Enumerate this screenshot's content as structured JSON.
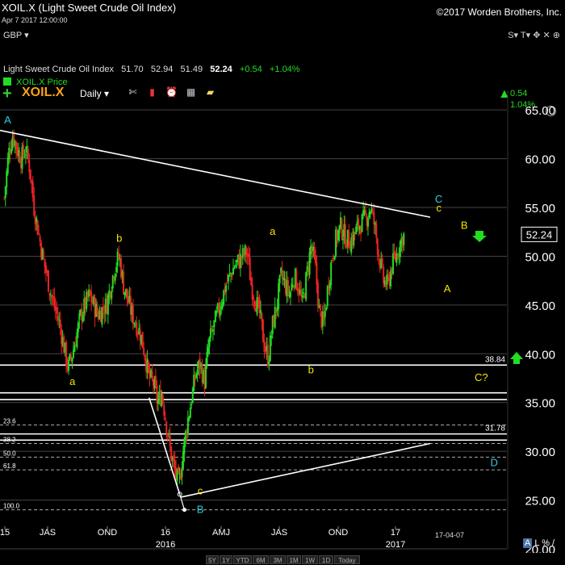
{
  "header": {
    "title": "XOIL.X (Light Sweet Crude Oil Index)",
    "copyright": "©2017 Worden Brothers, Inc.",
    "date": "Apr 7 2017 12:00:00",
    "currency": "GBP ▾",
    "window_buttons": "S▾ T▾ ✥ ✕ ⊕"
  },
  "toolbar": {
    "symbol": "XOIL.X",
    "interval": "Daily",
    "change_value": "0.54",
    "change_pct": "1.04%",
    "tools": [
      {
        "icon": "tools-icon",
        "glyph": "✄",
        "color": "#ddd"
      },
      {
        "icon": "indicator-icon",
        "glyph": "▮",
        "color": "#e33"
      },
      {
        "icon": "alarm-clock-icon",
        "glyph": "⏰",
        "color": "#e33"
      },
      {
        "icon": "calculator-icon",
        "glyph": "▦",
        "color": "#ccc"
      },
      {
        "icon": "note-icon",
        "glyph": "▰",
        "color": "#f5d76e"
      }
    ]
  },
  "quote": {
    "name": "Light Sweet Crude Oil Index",
    "open": "51.70",
    "high": "52.94",
    "low": "51.49",
    "last": "52.24",
    "change": "+0.54",
    "change_pct": "+1.04%"
  },
  "legend": {
    "label": "XOIL.X Price"
  },
  "bottom": {
    "ranges": [
      "5Y",
      "1Y",
      "YTD",
      "6M",
      "3M",
      "1M",
      "1W",
      "1D",
      "Today"
    ],
    "scale_buttons": [
      "A",
      "L",
      "%",
      "/"
    ]
  },
  "colors": {
    "up": "#22dd22",
    "down": "#ee2222",
    "wave_cyan": "#33ccdd",
    "wave_yellow": "#f5e400",
    "trendline": "#ffffff",
    "grid": "#444444"
  },
  "chart_data": {
    "type": "candlestick",
    "title": "XOIL.X (Light Sweet Crude Oil Index)",
    "ylim": [
      20,
      67
    ],
    "y_ticks": [
      20,
      25,
      30,
      35,
      40,
      45,
      50,
      55,
      60,
      65
    ],
    "y_tick_labels": [
      "20.00",
      "25.00",
      "30.00",
      "35.00",
      "40.00",
      "45.00",
      "50.00",
      "55.00",
      "60.00",
      "65.00"
    ],
    "x_tick_labels": [
      "15",
      "JAS",
      "OND",
      "16",
      "AMJ",
      "JAS",
      "OND",
      "17"
    ],
    "x_year_labels": [
      "2016",
      "2017"
    ],
    "date_label": "17-04-07",
    "last_price": 52.24,
    "price_path": [
      [
        0,
        56
      ],
      [
        1,
        60.5
      ],
      [
        2,
        62.5
      ],
      [
        3,
        61
      ],
      [
        4,
        60
      ],
      [
        5,
        61
      ],
      [
        6,
        59
      ],
      [
        7,
        55
      ],
      [
        9,
        50
      ],
      [
        11,
        46
      ],
      [
        13,
        43
      ],
      [
        15,
        38.5
      ],
      [
        16,
        40
      ],
      [
        18,
        44
      ],
      [
        20,
        46
      ],
      [
        22,
        44
      ],
      [
        24,
        45
      ],
      [
        26,
        49
      ],
      [
        27,
        50
      ],
      [
        28,
        47
      ],
      [
        30,
        44
      ],
      [
        32,
        42
      ],
      [
        33,
        40
      ],
      [
        34,
        37.5
      ],
      [
        35,
        37
      ],
      [
        36,
        35
      ],
      [
        37,
        36
      ],
      [
        38,
        33
      ],
      [
        39,
        30
      ],
      [
        40,
        28
      ],
      [
        41,
        26.5
      ],
      [
        42,
        30
      ],
      [
        43,
        33
      ],
      [
        45,
        38
      ],
      [
        46,
        39
      ],
      [
        47,
        37
      ],
      [
        48,
        41
      ],
      [
        50,
        44
      ],
      [
        52,
        47
      ],
      [
        54,
        49
      ],
      [
        56,
        50
      ],
      [
        57,
        50.5
      ],
      [
        58,
        47
      ],
      [
        60,
        44
      ],
      [
        61,
        41
      ],
      [
        62,
        39.5
      ],
      [
        63,
        43
      ],
      [
        64,
        45
      ],
      [
        65,
        48
      ],
      [
        66,
        47
      ],
      [
        67,
        46
      ],
      [
        68,
        48
      ],
      [
        69,
        47
      ],
      [
        70,
        45
      ],
      [
        71,
        48
      ],
      [
        72,
        51
      ],
      [
        73,
        49
      ],
      [
        74,
        44
      ],
      [
        75,
        43
      ],
      [
        76,
        47
      ],
      [
        77,
        50
      ],
      [
        78,
        52
      ],
      [
        79,
        53
      ],
      [
        80,
        52
      ],
      [
        81,
        51.5
      ],
      [
        82,
        52
      ],
      [
        83,
        53
      ],
      [
        84,
        53.5
      ],
      [
        85,
        54
      ],
      [
        86,
        55
      ],
      [
        87,
        53
      ],
      [
        88,
        50
      ],
      [
        89,
        47.5
      ],
      [
        90,
        47
      ],
      [
        91,
        49
      ],
      [
        92,
        50
      ],
      [
        93,
        51.5
      ],
      [
        94,
        52.24
      ]
    ],
    "horizontal_lines": [
      {
        "price": 38.84,
        "label": "38.84",
        "style": "solid"
      },
      {
        "price": 36.0,
        "label": "",
        "style": "solid"
      },
      {
        "price": 35.3,
        "label": "",
        "style": "solid"
      },
      {
        "price": 31.78,
        "label": "31.78",
        "style": "solid"
      },
      {
        "price": 31.15,
        "label": "",
        "style": "solid"
      }
    ],
    "fib_levels": [
      {
        "label": "23.6",
        "price": 32.7
      },
      {
        "label": "38.2",
        "price": 30.8
      },
      {
        "label": "50.0",
        "price": 29.4
      },
      {
        "label": "61.8",
        "price": 28.1
      },
      {
        "label": "100.0",
        "price": 24.0
      }
    ],
    "trendlines": [
      {
        "from": [
          -1,
          62.9
        ],
        "to": [
          100,
          54.0
        ]
      },
      {
        "from": [
          41.5,
          25.3
        ],
        "to": [
          100,
          30.8
        ]
      }
    ],
    "wave_labels": [
      {
        "text": "A",
        "x": 0.8,
        "y": 63.6,
        "color": "cyan"
      },
      {
        "text": "a",
        "x": 16,
        "y": 36.8,
        "color": "yellow"
      },
      {
        "text": "b",
        "x": 27,
        "y": 51.5,
        "color": "yellow"
      },
      {
        "text": "c",
        "x": 46,
        "y": 25.6,
        "color": "yellow"
      },
      {
        "text": "B",
        "x": 46,
        "y": 23.7,
        "color": "cyan"
      },
      {
        "text": "a",
        "x": 63,
        "y": 52.2,
        "color": "yellow"
      },
      {
        "text": "b",
        "x": 72,
        "y": 38.0,
        "color": "yellow"
      },
      {
        "text": "C",
        "x": 102,
        "y": 55.5,
        "color": "cyan"
      },
      {
        "text": "c",
        "x": 102,
        "y": 54.6,
        "color": "yellow"
      },
      {
        "text": "B",
        "x": 108,
        "y": 52.8,
        "color": "yellow"
      },
      {
        "text": "A",
        "x": 104,
        "y": 46.3,
        "color": "yellow"
      },
      {
        "text": "C?",
        "x": 112,
        "y": 37.2,
        "color": "yellow"
      },
      {
        "text": "D",
        "x": 115,
        "y": 28.5,
        "color": "cyan"
      }
    ]
  }
}
